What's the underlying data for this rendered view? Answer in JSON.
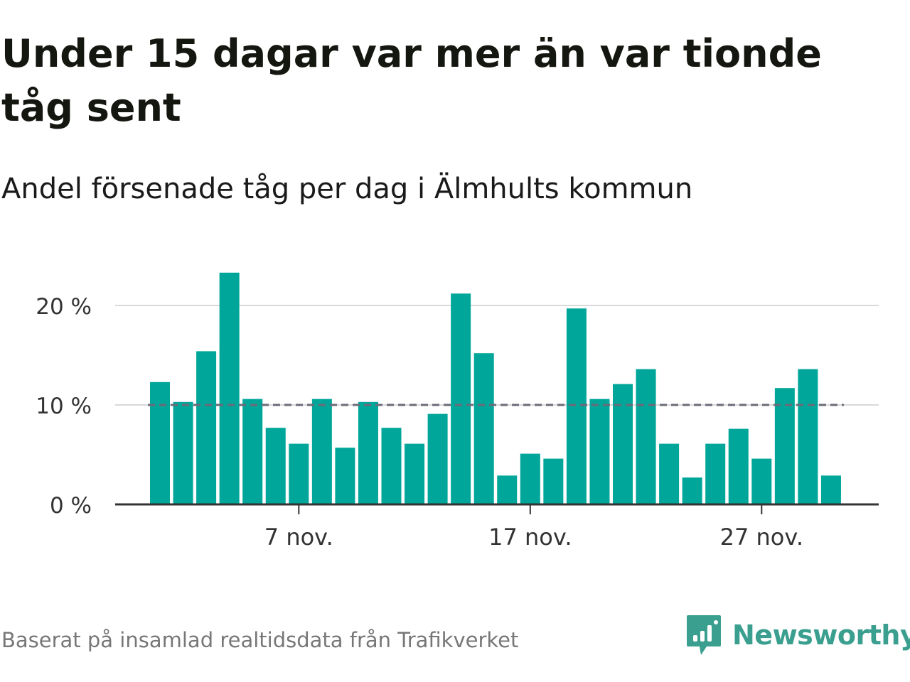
{
  "header": {
    "title": "Under 15 dagar var mer än var tionde tåg sent",
    "subtitle": "Andel försenade tåg per dag i Älmhults kommun"
  },
  "footer": {
    "source": "Baserat på insamlad realtidsdata från Trafikverket",
    "brand": "Newsworthy"
  },
  "colors": {
    "bar": "#00a69a",
    "reference_line": "#6b6b78",
    "grid": "#d9d9d9",
    "axis": "#333333",
    "brand": "#3a9f8e"
  },
  "chart_data": {
    "type": "bar",
    "x": [
      "1 nov.",
      "2 nov.",
      "3 nov.",
      "4 nov.",
      "5 nov.",
      "6 nov.",
      "7 nov.",
      "8 nov.",
      "9 nov.",
      "10 nov.",
      "11 nov.",
      "12 nov.",
      "13 nov.",
      "14 nov.",
      "15 nov.",
      "16 nov.",
      "17 nov.",
      "18 nov.",
      "19 nov.",
      "20 nov.",
      "21 nov.",
      "22 nov.",
      "23 nov.",
      "24 nov.",
      "25 nov.",
      "26 nov.",
      "27 nov.",
      "28 nov.",
      "29 nov.",
      "30 nov."
    ],
    "values": [
      12.3,
      10.3,
      15.4,
      23.3,
      10.6,
      7.7,
      6.1,
      10.6,
      5.7,
      10.3,
      7.7,
      6.1,
      9.1,
      21.2,
      15.2,
      2.9,
      5.1,
      4.6,
      19.7,
      10.6,
      12.1,
      13.6,
      6.1,
      2.7,
      6.1,
      7.6,
      4.6,
      11.7,
      13.6,
      2.9
    ],
    "x_tick_labels": [
      {
        "label": "7 nov.",
        "day_index": 6
      },
      {
        "label": "17 nov.",
        "day_index": 16
      },
      {
        "label": "27 nov.",
        "day_index": 26
      }
    ],
    "y_ticks": [
      {
        "value": 0,
        "label": "0 %"
      },
      {
        "value": 10,
        "label": "10 %"
      },
      {
        "value": 20,
        "label": "20 %"
      }
    ],
    "ylim": [
      0,
      25
    ],
    "reference_line": 10,
    "grid": true,
    "xlabel": "",
    "ylabel": ""
  }
}
